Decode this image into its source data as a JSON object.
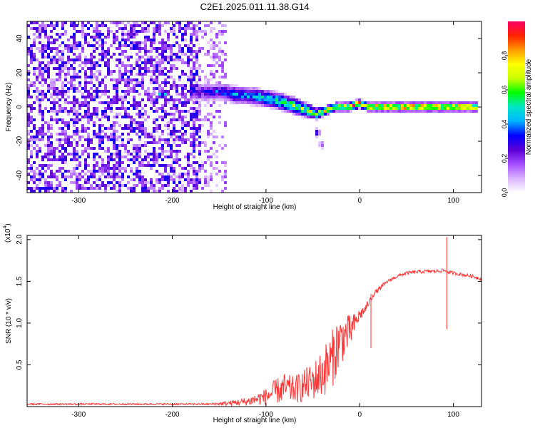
{
  "figure": {
    "title": "C2E1.2025.011.11.38.G14"
  },
  "chart_data": [
    {
      "type": "heatmap",
      "xlabel": "Height of straight line (km)",
      "ylabel": "Frequency (Hz)",
      "xlim": [
        -355,
        130
      ],
      "ylim": [
        -50,
        50
      ],
      "xticks": [
        -300,
        -200,
        -100,
        0,
        100
      ],
      "yticks": [
        -40,
        -20,
        0,
        20,
        40
      ],
      "colorbar": {
        "label": "Normalized spectral amplitude",
        "range": [
          0,
          1
        ],
        "ticks": [
          0.0,
          0.2,
          0.4,
          0.6,
          0.8
        ],
        "colors": [
          "#ffffff",
          "#d9b3ff",
          "#a64dff",
          "#5a00d6",
          "#0000ff",
          "#00b4ff",
          "#00e6c8",
          "#00ff00",
          "#c8ff00",
          "#ffff00",
          "#ff9900",
          "#ff2200",
          "#ff0066"
        ]
      },
      "noise_region": {
        "x": [
          -355,
          -140
        ],
        "y": [
          -50,
          50
        ],
        "level": 0.25
      },
      "signal_trace": [
        {
          "x": -215,
          "f": 7,
          "width": 3,
          "amp": 0.45
        },
        {
          "x": -170,
          "f": 9,
          "width": 6,
          "amp": 0.25
        },
        {
          "x": -150,
          "f": 9,
          "width": 6,
          "amp": 0.35
        },
        {
          "x": -130,
          "f": 7,
          "width": 6,
          "amp": 0.45
        },
        {
          "x": -110,
          "f": 6,
          "width": 6,
          "amp": 0.5
        },
        {
          "x": -90,
          "f": 4,
          "width": 6,
          "amp": 0.55
        },
        {
          "x": -70,
          "f": 1,
          "width": 6,
          "amp": 0.6
        },
        {
          "x": -55,
          "f": -2,
          "width": 5,
          "amp": 0.65
        },
        {
          "x": -45,
          "f": -4,
          "width": 4,
          "amp": 0.7
        },
        {
          "x": -35,
          "f": -2,
          "width": 3,
          "amp": 0.8
        },
        {
          "x": -25,
          "f": 0,
          "width": 3,
          "amp": 0.85
        },
        {
          "x": -10,
          "f": 0,
          "width": 3,
          "amp": 0.9
        },
        {
          "x": 0,
          "f": 2,
          "width": 3,
          "amp": 0.95
        },
        {
          "x": 10,
          "f": 0,
          "width": 3,
          "amp": 0.9
        },
        {
          "x": 50,
          "f": 0,
          "width": 3,
          "amp": 0.95
        },
        {
          "x": 90,
          "f": 0,
          "width": 3,
          "amp": 0.95
        },
        {
          "x": 128,
          "f": 0,
          "width": 3,
          "amp": 0.85
        }
      ],
      "blobs": [
        {
          "x": -45,
          "f": -15,
          "amp": 0.4
        },
        {
          "x": -40,
          "f": -22,
          "amp": 0.2
        }
      ]
    },
    {
      "type": "line",
      "xlabel": "Height of straight line (km)",
      "ylabel": "SNR (10 * v/v)",
      "y_multiplier": "(x10",
      "y_multiplier_exp": "4",
      "y_multiplier_close": ")",
      "xlim": [
        -355,
        130
      ],
      "ylim": [
        0,
        2.05
      ],
      "xticks": [
        -300,
        -200,
        -100,
        0,
        100
      ],
      "yticks": [
        0.5,
        1.0,
        1.5,
        2.0
      ],
      "ytick_labels": [
        "0.5",
        "1.0",
        "1.5",
        "2.0"
      ],
      "series": [
        {
          "color": "#ff3333",
          "x": [
            -355,
            -300,
            -200,
            -160,
            -140,
            -120,
            -100,
            -90,
            -80,
            -70,
            -60,
            -50,
            -40,
            -30,
            -25,
            -20,
            -15,
            -10,
            -5,
            0,
            5,
            10,
            15,
            20,
            25,
            30,
            40,
            50,
            60,
            70,
            80,
            90,
            95,
            100,
            110,
            120,
            130
          ],
          "y": [
            0.03,
            0.03,
            0.03,
            0.03,
            0.04,
            0.06,
            0.12,
            0.18,
            0.22,
            0.2,
            0.25,
            0.3,
            0.4,
            0.55,
            0.7,
            0.8,
            0.85,
            0.9,
            1.0,
            1.1,
            1.15,
            1.25,
            1.35,
            1.4,
            1.45,
            1.5,
            1.56,
            1.6,
            1.61,
            1.62,
            1.62,
            1.63,
            1.61,
            1.6,
            1.58,
            1.56,
            1.53
          ],
          "noise": [
            0.01,
            0.01,
            0.01,
            0.01,
            0.03,
            0.05,
            0.1,
            0.15,
            0.18,
            0.16,
            0.2,
            0.22,
            0.3,
            0.35,
            0.35,
            0.3,
            0.25,
            0.2,
            0.12,
            0.08,
            0.06,
            0.04,
            0.03,
            0.03,
            0.03,
            0.02,
            0.02,
            0.02,
            0.02,
            0.02,
            0.02,
            0.02,
            0.02,
            0.02,
            0.02,
            0.02,
            0.02
          ]
        }
      ],
      "spikes": [
        {
          "x": 93,
          "y_high": 2.03,
          "y_low": 0.93
        },
        {
          "x": 12,
          "y_high": 1.35,
          "y_low": 0.7
        }
      ]
    }
  ]
}
